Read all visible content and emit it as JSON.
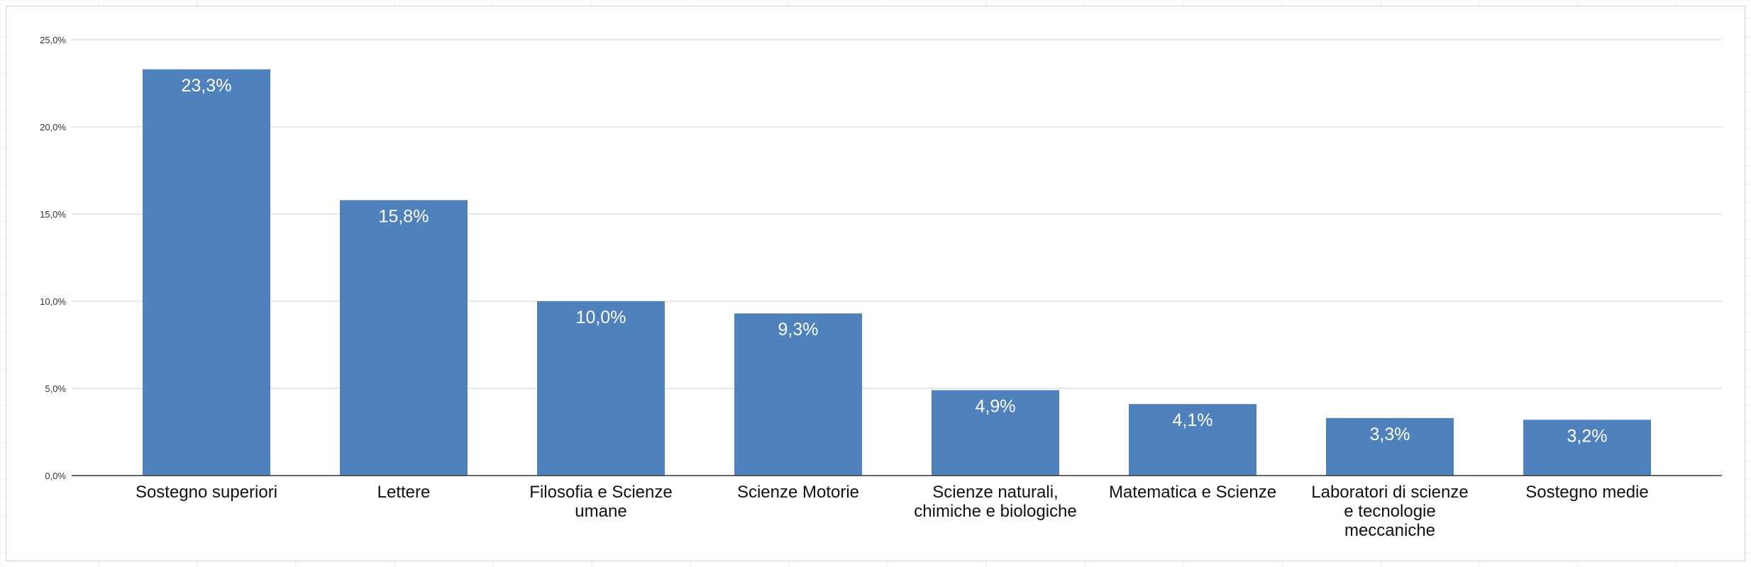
{
  "chart_data": {
    "type": "bar",
    "title": "",
    "xlabel": "",
    "ylabel": "",
    "ylim": [
      0,
      25
    ],
    "y_ticks": [
      "0,0%",
      "5,0%",
      "10,0%",
      "15,0%",
      "20,0%",
      "25,0%"
    ],
    "y_tick_values": [
      0,
      5,
      10,
      15,
      20,
      25
    ],
    "grid": true,
    "legend": "none",
    "bar_color": "#4f81bd",
    "categories": [
      [
        "Sostegno superiori"
      ],
      [
        "Lettere"
      ],
      [
        "Filosofia e Scienze",
        "umane"
      ],
      [
        "Scienze Motorie"
      ],
      [
        "Scienze naturali,",
        "chimiche e biologiche"
      ],
      [
        "Matematica e Scienze"
      ],
      [
        "Laboratori di scienze",
        "e tecnologie",
        "meccaniche"
      ],
      [
        "Sostegno medie"
      ]
    ],
    "values": [
      23.3,
      15.8,
      10.0,
      9.3,
      4.9,
      4.1,
      3.3,
      3.2
    ],
    "data_labels": [
      "23,3%",
      "15,8%",
      "10,0%",
      "9,3%",
      "4,9%",
      "4,1%",
      "3,3%",
      "3,2%"
    ]
  }
}
